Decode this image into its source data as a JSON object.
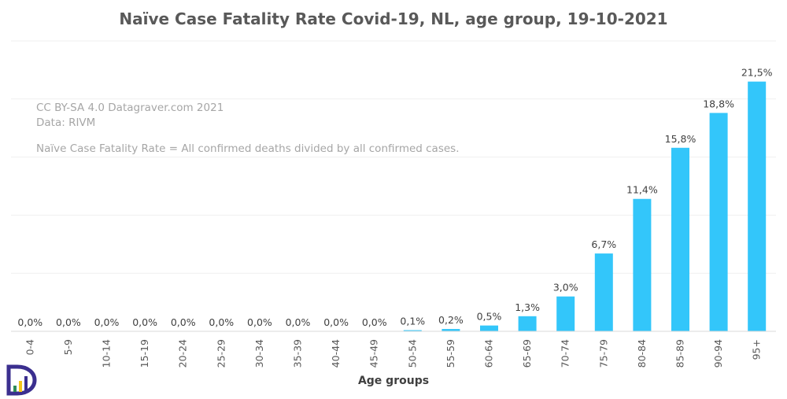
{
  "chart_data": {
    "type": "bar",
    "title": "Naïve Case Fatality Rate Covid-19, NL, age group, 19-10-2021",
    "xlabel": "Age groups",
    "ylabel": "",
    "ylim": [
      0,
      25
    ],
    "grid": true,
    "categories": [
      "0-4",
      "5-9",
      "10-14",
      "15-19",
      "20-24",
      "25-29",
      "30-34",
      "35-39",
      "40-44",
      "45-49",
      "50-54",
      "55-59",
      "60-64",
      "65-69",
      "70-74",
      "75-79",
      "80-84",
      "85-89",
      "90-94",
      "95+"
    ],
    "values": [
      0.0,
      0.0,
      0.0,
      0.0,
      0.0,
      0.0,
      0.0,
      0.0,
      0.0,
      0.0,
      0.1,
      0.2,
      0.5,
      1.3,
      3.0,
      6.7,
      11.4,
      15.8,
      18.8,
      21.5
    ],
    "data_labels": [
      "0,0%",
      "0,0%",
      "0,0%",
      "0,0%",
      "0,0%",
      "0,0%",
      "0,0%",
      "0,0%",
      "0,0%",
      "0,0%",
      "0,1%",
      "0,2%",
      "0,5%",
      "1,3%",
      "3,0%",
      "6,7%",
      "11,4%",
      "15,8%",
      "18,8%",
      "21,5%"
    ],
    "bar_color": "#33c6fa",
    "annotations": {
      "license": "CC BY-SA 4.0  Datagraver.com 2021",
      "source": "Data: RIVM",
      "definition": "Naïve Case Fatality Rate = All confirmed deaths divided by all confirmed cases."
    }
  },
  "logo": {
    "icon": "datagraver-logo-icon",
    "colors": [
      "#3b2f8f",
      "#f5c518",
      "#2e8b57"
    ]
  }
}
